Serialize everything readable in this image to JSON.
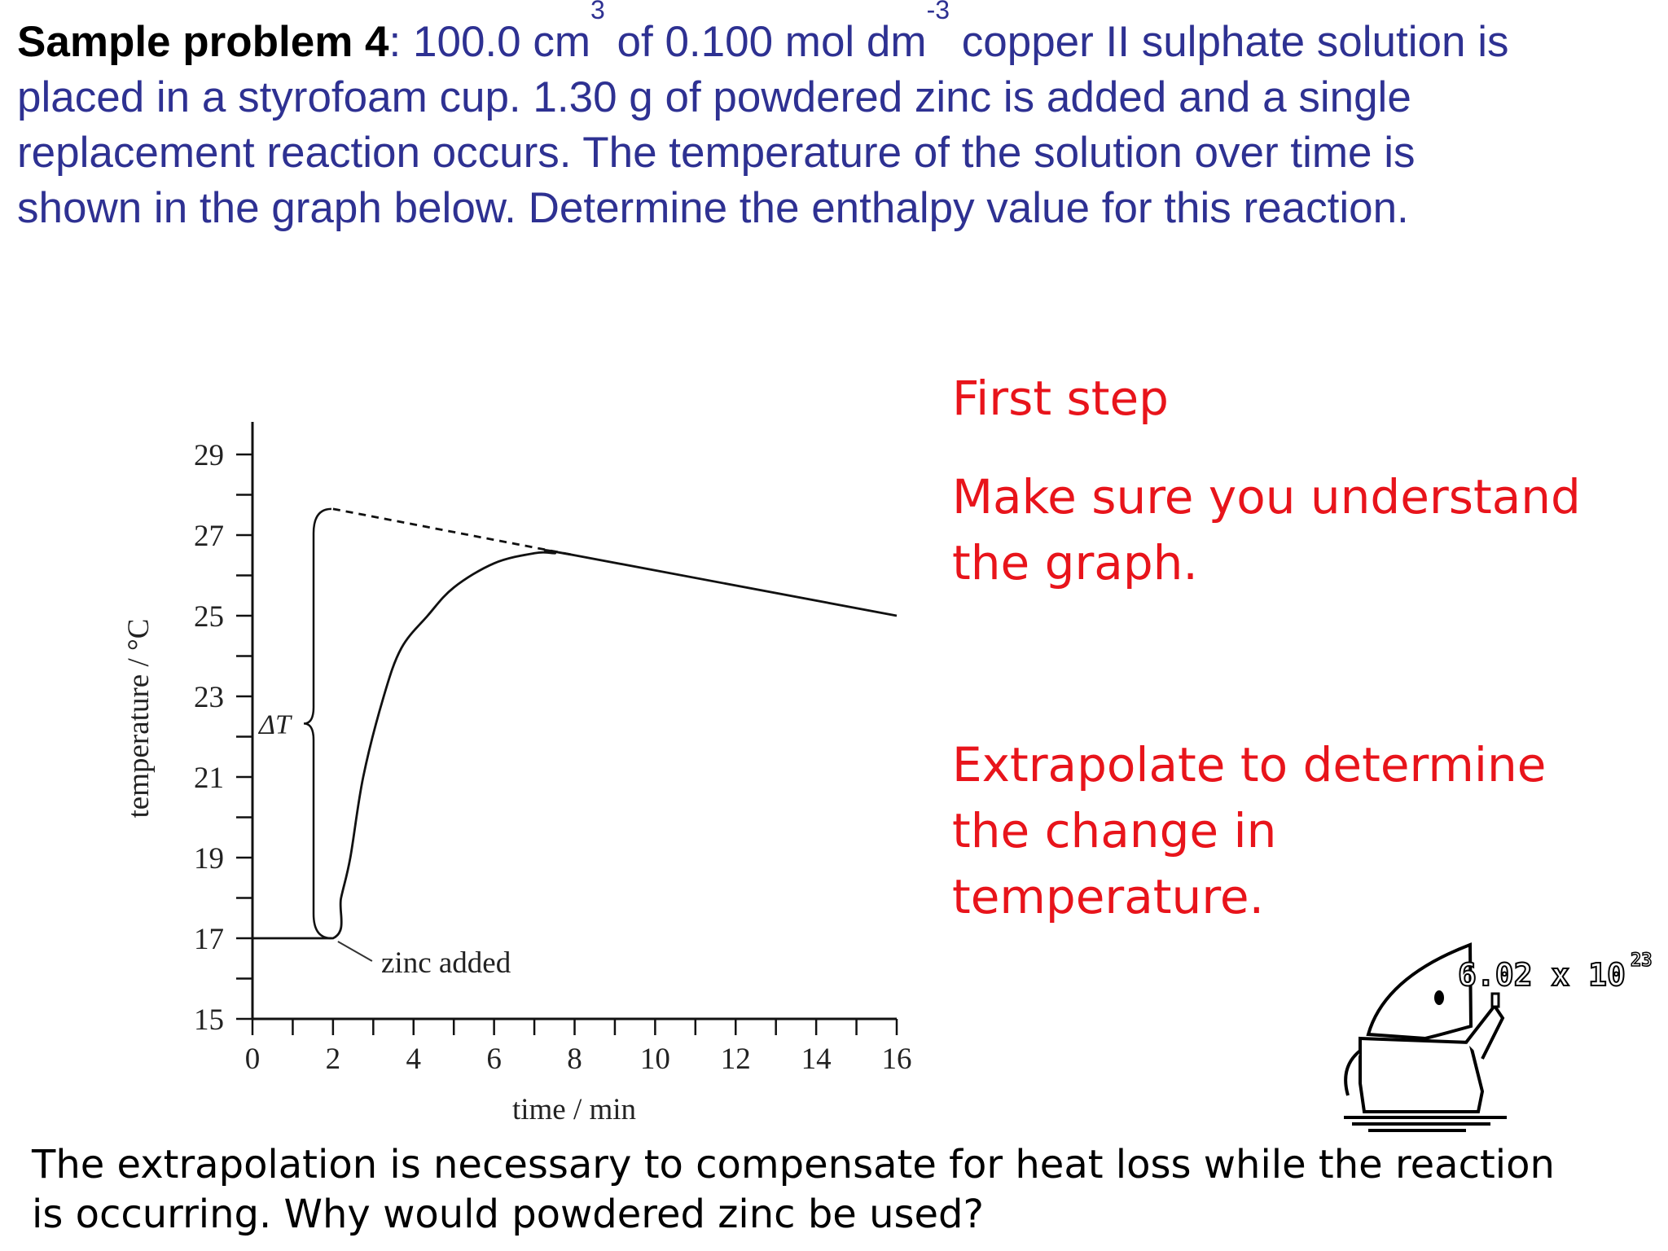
{
  "problem": {
    "lead": "Sample problem 4",
    "sep": ":",
    "line1_a": " 100.0 cm",
    "sup1": "3",
    "line1_b": " of  0.100 mol dm",
    "sup2": "-3",
    "line1_c": " copper II sulphate solution is",
    "line2": "placed in a styrofoam cup.  1.30 g of powdered zinc is added and a single",
    "line3": "replacement reaction occurs.  The temperature of the solution over time is",
    "line4": "shown in the graph below.  Determine the enthalpy value for this reaction."
  },
  "notes": {
    "first_step": "First step",
    "understand_1": "Make sure you understand",
    "understand_2": "the graph.",
    "extrapolate_1": "Extrapolate to determine",
    "extrapolate_2": "the change in",
    "extrapolate_3": "temperature.",
    "color": "#e8141b"
  },
  "footer": {
    "line1": "The extrapolation is necessary to compensate for heat loss while the reaction",
    "line2": "is occurring.  Why would powdered zinc be used?"
  },
  "cartoon": {
    "text": "6.02 x 10",
    "exponent": "23"
  },
  "chart_data": {
    "type": "line",
    "xlabel": "time / min",
    "ylabel": "temperature / °C",
    "xlim": [
      0,
      16
    ],
    "ylim": [
      15,
      29
    ],
    "xticks": [
      "0",
      "2",
      "4",
      "6",
      "8",
      "10",
      "12",
      "14",
      "16"
    ],
    "yticks": [
      "15",
      "17",
      "19",
      "21",
      "23",
      "25",
      "27",
      "29"
    ],
    "grid": false,
    "series": [
      {
        "points": [
          [
            0,
            17
          ],
          [
            2,
            17
          ],
          [
            2.2,
            18
          ],
          [
            2.43,
            19
          ],
          [
            2.75,
            21
          ],
          [
            3.26,
            23
          ],
          [
            3.7,
            24.2
          ],
          [
            4.35,
            25
          ],
          [
            5,
            25.7
          ],
          [
            6,
            26.3
          ],
          [
            7,
            26.55
          ],
          [
            7.5,
            26.55
          ],
          [
            8,
            26.5
          ],
          [
            16,
            25
          ]
        ],
        "style": "solid"
      },
      {
        "points": [
          [
            2,
            27.65
          ],
          [
            8,
            26.5
          ]
        ],
        "style": "dashed"
      }
    ],
    "annotations": {
      "zinc_added": "zinc added",
      "zinc_added_at": [
        2,
        17
      ],
      "delta_t": "ΔT",
      "delta_t_range": [
        17,
        27.65
      ]
    }
  }
}
